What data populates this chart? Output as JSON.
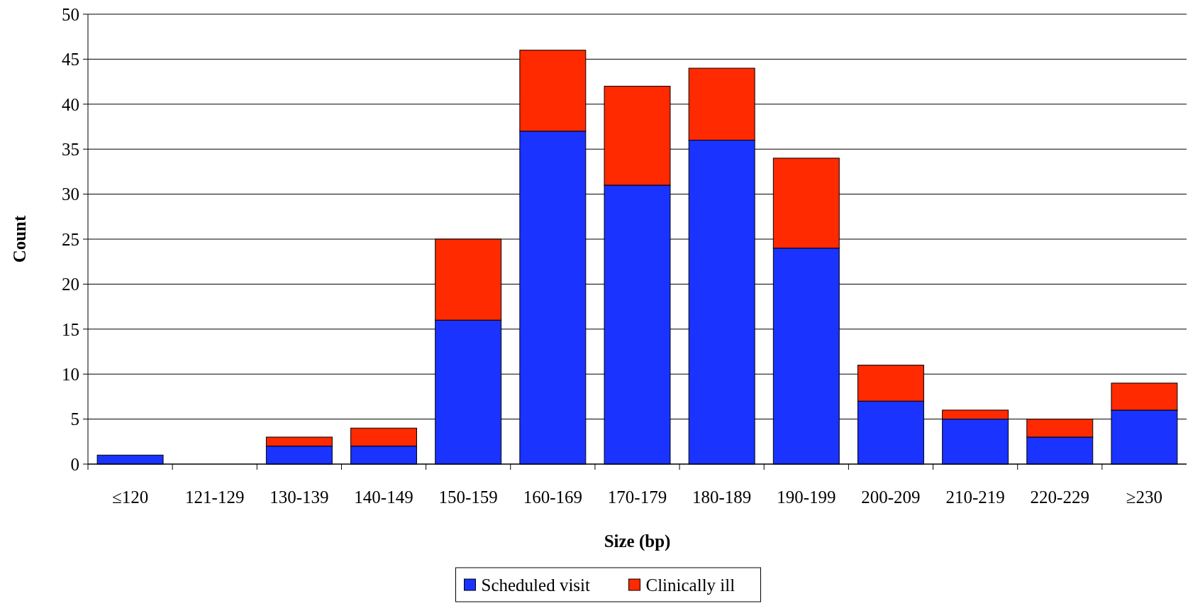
{
  "chart_data": {
    "type": "bar",
    "stacked": true,
    "xlabel": "Size (bp)",
    "ylabel": "Count",
    "categories": [
      "≤120",
      "121-129",
      "130-139",
      "140-149",
      "150-159",
      "160-169",
      "170-179",
      "180-189",
      "190-199",
      "200-209",
      "210-219",
      "220-229",
      "≥230"
    ],
    "series": [
      {
        "name": "Scheduled visit",
        "color": "#1a33ff",
        "values": [
          1,
          0,
          2,
          2,
          16,
          37,
          31,
          36,
          24,
          7,
          5,
          3,
          6
        ]
      },
      {
        "name": "Clinically ill",
        "color": "#ff2a00",
        "values": [
          0,
          0,
          1,
          2,
          9,
          9,
          11,
          8,
          10,
          4,
          1,
          2,
          3
        ]
      }
    ],
    "ylim": [
      0,
      50
    ],
    "yticks": [
      0,
      5,
      10,
      15,
      20,
      25,
      30,
      35,
      40,
      45,
      50
    ],
    "grid": "y",
    "legend": "bottom"
  }
}
